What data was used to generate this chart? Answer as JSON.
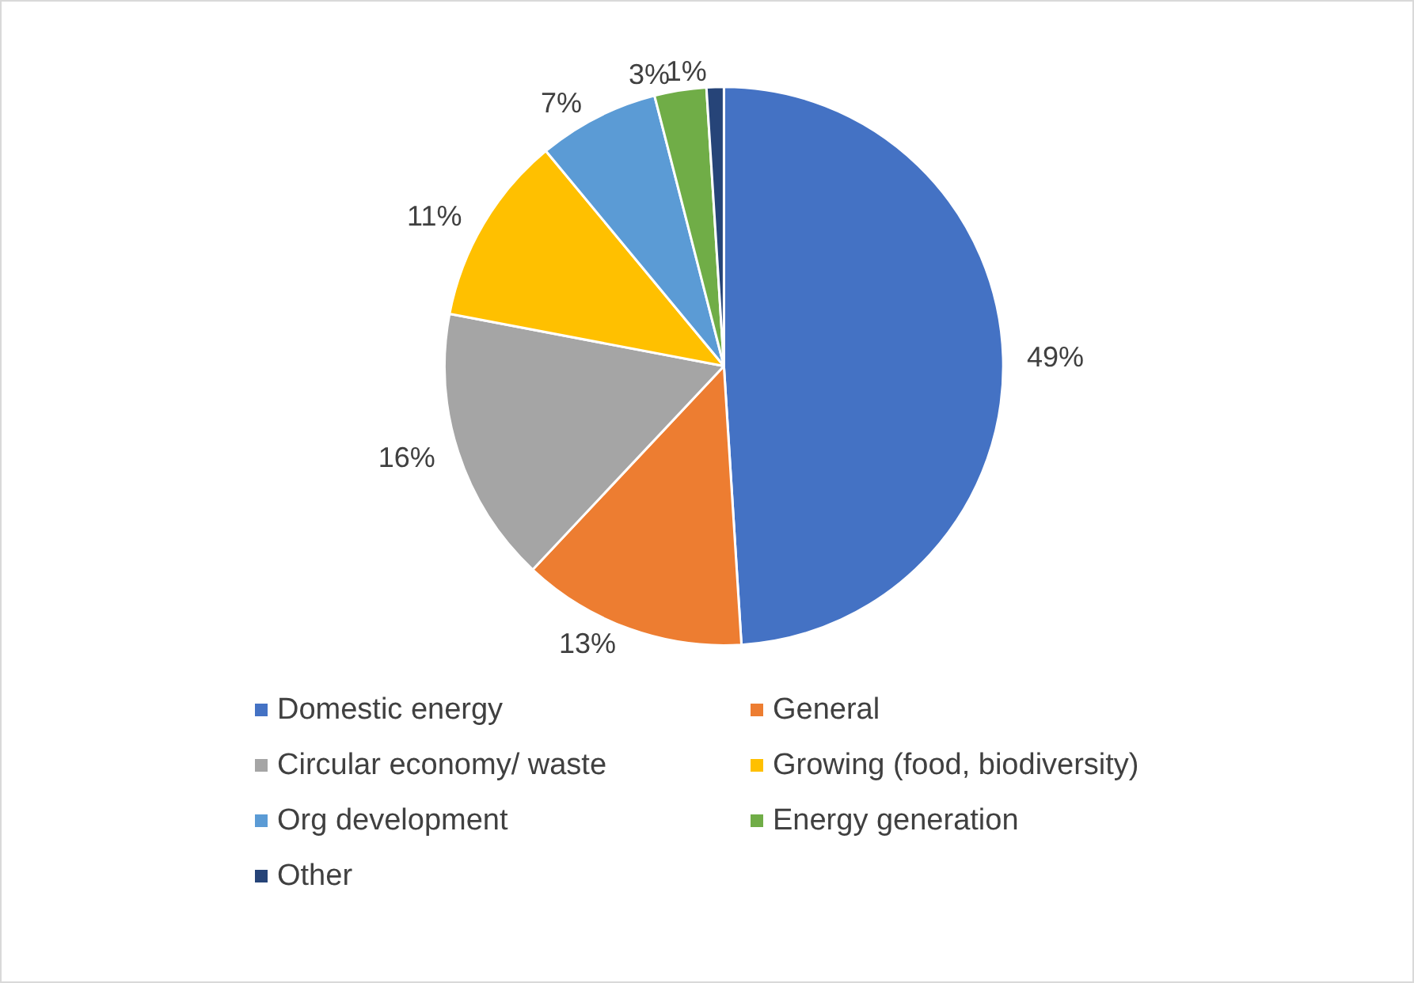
{
  "chart_data": {
    "type": "pie",
    "categories": [
      "Domestic energy",
      "General",
      "Circular economy/ waste",
      "Growing (food, biodiversity)",
      "Org development",
      "Energy generation",
      "Other"
    ],
    "values": [
      49,
      13,
      16,
      11,
      7,
      3,
      1
    ],
    "colors": [
      "#4472c4",
      "#ed7d31",
      "#a5a5a5",
      "#ffc000",
      "#5b9bd5",
      "#70ad47",
      "#264478"
    ],
    "value_labels": [
      "49%",
      "13%",
      "16%",
      "11%",
      "7%",
      "3%",
      "1%"
    ],
    "legend": "bottom"
  }
}
